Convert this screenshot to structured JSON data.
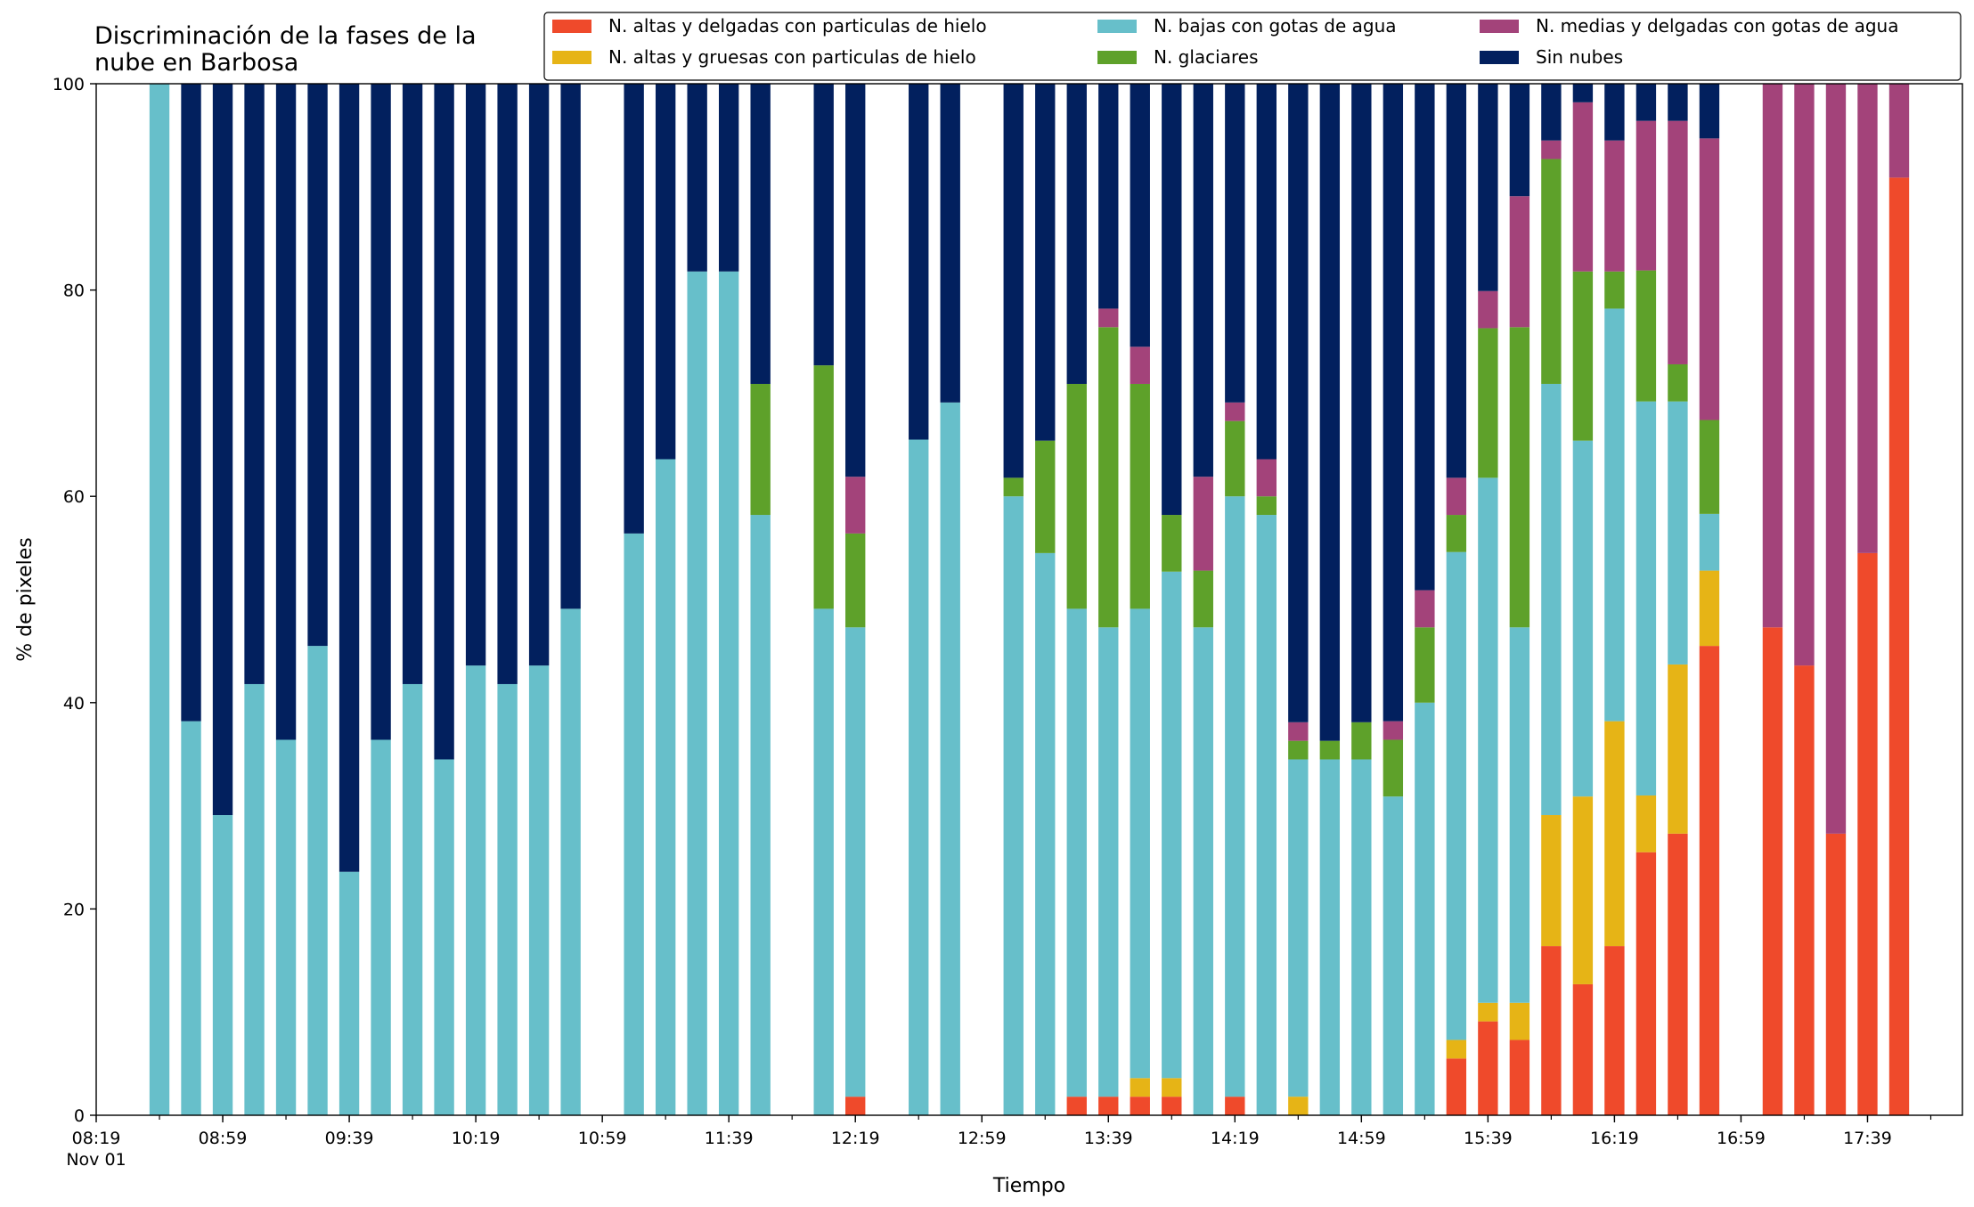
{
  "chart_data": {
    "type": "bar",
    "stacked": true,
    "title": "Discriminación de la fases de la\nnube en Barbosa",
    "xlabel": "Tiempo",
    "ylabel": "% de pixeles",
    "ylim": [
      0,
      100
    ],
    "yticks": [
      0,
      20,
      40,
      60,
      80,
      100
    ],
    "xlim": [
      "08:19",
      "18:09"
    ],
    "xticks": [
      {
        "t": "08:19",
        "label": "08:19",
        "sublabel": "Nov 01"
      },
      {
        "t": "08:59",
        "label": "08:59"
      },
      {
        "t": "09:39",
        "label": "09:39"
      },
      {
        "t": "10:19",
        "label": "10:19"
      },
      {
        "t": "10:59",
        "label": "10:59"
      },
      {
        "t": "11:39",
        "label": "11:39"
      },
      {
        "t": "12:19",
        "label": "12:19"
      },
      {
        "t": "12:59",
        "label": "12:59"
      },
      {
        "t": "13:39",
        "label": "13:39"
      },
      {
        "t": "14:19",
        "label": "14:19"
      },
      {
        "t": "14:59",
        "label": "14:59"
      },
      {
        "t": "15:39",
        "label": "15:39"
      },
      {
        "t": "16:19",
        "label": "16:19"
      },
      {
        "t": "16:59",
        "label": "16:59"
      },
      {
        "t": "17:39",
        "label": "17:39"
      }
    ],
    "legend_position": "top-right",
    "series": [
      {
        "key": "hi_thin",
        "name": "N. altas y delgadas con particulas de hielo",
        "color": "#ef4a2b"
      },
      {
        "key": "hi_thick",
        "name": "N. altas y gruesas con particulas de hielo",
        "color": "#e6b416"
      },
      {
        "key": "low_water",
        "name": "N. bajas con gotas de agua",
        "color": "#67bfca"
      },
      {
        "key": "glacier",
        "name": "N. glaciares",
        "color": "#5ea12a"
      },
      {
        "key": "mid_water",
        "name": "N. medias y delgadas con gotas de agua",
        "color": "#a3437a"
      },
      {
        "key": "clear",
        "name": "Sin nubes",
        "color": "#02205e"
      }
    ],
    "bars": [
      {
        "t": "08:39",
        "hi_thin": 0,
        "hi_thick": 0,
        "low_water": 100,
        "glacier": 0,
        "mid_water": 0,
        "clear": 0
      },
      {
        "t": "08:49",
        "hi_thin": 0,
        "hi_thick": 0,
        "low_water": 38.2,
        "glacier": 0,
        "mid_water": 0,
        "clear": 61.8
      },
      {
        "t": "08:59",
        "hi_thin": 0,
        "hi_thick": 0,
        "low_water": 29.1,
        "glacier": 0,
        "mid_water": 0,
        "clear": 70.9
      },
      {
        "t": "09:09",
        "hi_thin": 0,
        "hi_thick": 0,
        "low_water": 41.8,
        "glacier": 0,
        "mid_water": 0,
        "clear": 58.2
      },
      {
        "t": "09:19",
        "hi_thin": 0,
        "hi_thick": 0,
        "low_water": 36.4,
        "glacier": 0,
        "mid_water": 0,
        "clear": 63.6
      },
      {
        "t": "09:29",
        "hi_thin": 0,
        "hi_thick": 0,
        "low_water": 45.5,
        "glacier": 0,
        "mid_water": 0,
        "clear": 54.5
      },
      {
        "t": "09:39",
        "hi_thin": 0,
        "hi_thick": 0,
        "low_water": 23.6,
        "glacier": 0,
        "mid_water": 0,
        "clear": 76.4
      },
      {
        "t": "09:49",
        "hi_thin": 0,
        "hi_thick": 0,
        "low_water": 36.4,
        "glacier": 0,
        "mid_water": 0,
        "clear": 63.6
      },
      {
        "t": "09:59",
        "hi_thin": 0,
        "hi_thick": 0,
        "low_water": 41.8,
        "glacier": 0,
        "mid_water": 0,
        "clear": 58.2
      },
      {
        "t": "10:09",
        "hi_thin": 0,
        "hi_thick": 0,
        "low_water": 34.5,
        "glacier": 0,
        "mid_water": 0,
        "clear": 65.5
      },
      {
        "t": "10:19",
        "hi_thin": 0,
        "hi_thick": 0,
        "low_water": 43.6,
        "glacier": 0,
        "mid_water": 0,
        "clear": 56.4
      },
      {
        "t": "10:29",
        "hi_thin": 0,
        "hi_thick": 0,
        "low_water": 41.8,
        "glacier": 0,
        "mid_water": 0,
        "clear": 58.2
      },
      {
        "t": "10:39",
        "hi_thin": 0,
        "hi_thick": 0,
        "low_water": 43.6,
        "glacier": 0,
        "mid_water": 0,
        "clear": 56.4
      },
      {
        "t": "10:49",
        "hi_thin": 0,
        "hi_thick": 0,
        "low_water": 49.1,
        "glacier": 0,
        "mid_water": 0,
        "clear": 50.9
      },
      {
        "t": "11:09",
        "hi_thin": 0,
        "hi_thick": 0,
        "low_water": 56.4,
        "glacier": 0,
        "mid_water": 0,
        "clear": 43.6
      },
      {
        "t": "11:19",
        "hi_thin": 0,
        "hi_thick": 0,
        "low_water": 63.6,
        "glacier": 0,
        "mid_water": 0,
        "clear": 36.4
      },
      {
        "t": "11:29",
        "hi_thin": 0,
        "hi_thick": 0,
        "low_water": 81.8,
        "glacier": 0,
        "mid_water": 0,
        "clear": 18.2
      },
      {
        "t": "11:39",
        "hi_thin": 0,
        "hi_thick": 0,
        "low_water": 81.8,
        "glacier": 0,
        "mid_water": 0,
        "clear": 18.2
      },
      {
        "t": "11:49",
        "hi_thin": 0,
        "hi_thick": 0,
        "low_water": 58.2,
        "glacier": 12.7,
        "mid_water": 0,
        "clear": 29.1
      },
      {
        "t": "12:09",
        "hi_thin": 0,
        "hi_thick": 0,
        "low_water": 49.1,
        "glacier": 23.6,
        "mid_water": 0,
        "clear": 27.3
      },
      {
        "t": "12:19",
        "hi_thin": 1.8,
        "hi_thick": 0,
        "low_water": 45.5,
        "glacier": 9.1,
        "mid_water": 5.5,
        "clear": 38.1
      },
      {
        "t": "12:39",
        "hi_thin": 0,
        "hi_thick": 0,
        "low_water": 65.5,
        "glacier": 0,
        "mid_water": 0,
        "clear": 34.5
      },
      {
        "t": "12:49",
        "hi_thin": 0,
        "hi_thick": 0,
        "low_water": 69.1,
        "glacier": 0,
        "mid_water": 0,
        "clear": 30.9
      },
      {
        "t": "13:09",
        "hi_thin": 0,
        "hi_thick": 0,
        "low_water": 60,
        "glacier": 1.8,
        "mid_water": 0,
        "clear": 38.2
      },
      {
        "t": "13:19",
        "hi_thin": 0,
        "hi_thick": 0,
        "low_water": 54.5,
        "glacier": 10.9,
        "mid_water": 0,
        "clear": 34.6
      },
      {
        "t": "13:29",
        "hi_thin": 1.8,
        "hi_thick": 0,
        "low_water": 47.3,
        "glacier": 21.8,
        "mid_water": 0,
        "clear": 29.1
      },
      {
        "t": "13:39",
        "hi_thin": 1.8,
        "hi_thick": 0,
        "low_water": 45.5,
        "glacier": 29.1,
        "mid_water": 1.8,
        "clear": 21.8
      },
      {
        "t": "13:49",
        "hi_thin": 1.8,
        "hi_thick": 1.8,
        "low_water": 45.5,
        "glacier": 21.8,
        "mid_water": 3.6,
        "clear": 25.5
      },
      {
        "t": "13:59",
        "hi_thin": 1.8,
        "hi_thick": 1.8,
        "low_water": 49.1,
        "glacier": 5.5,
        "mid_water": 0,
        "clear": 41.8
      },
      {
        "t": "14:09",
        "hi_thin": 0,
        "hi_thick": 0,
        "low_water": 47.3,
        "glacier": 5.5,
        "mid_water": 9.1,
        "clear": 38.1
      },
      {
        "t": "14:19",
        "hi_thin": 1.8,
        "hi_thick": 0,
        "low_water": 58.2,
        "glacier": 7.3,
        "mid_water": 1.8,
        "clear": 30.9
      },
      {
        "t": "14:29",
        "hi_thin": 0,
        "hi_thick": 0,
        "low_water": 58.2,
        "glacier": 1.8,
        "mid_water": 3.6,
        "clear": 36.4
      },
      {
        "t": "14:39",
        "hi_thin": 0,
        "hi_thick": 1.8,
        "low_water": 32.7,
        "glacier": 1.8,
        "mid_water": 1.8,
        "clear": 61.9
      },
      {
        "t": "14:49",
        "hi_thin": 0,
        "hi_thick": 0,
        "low_water": 34.5,
        "glacier": 1.8,
        "mid_water": 0,
        "clear": 63.7
      },
      {
        "t": "14:59",
        "hi_thin": 0,
        "hi_thick": 0,
        "low_water": 34.5,
        "glacier": 3.6,
        "mid_water": 0,
        "clear": 61.9
      },
      {
        "t": "15:09",
        "hi_thin": 0,
        "hi_thick": 0,
        "low_water": 30.9,
        "glacier": 5.5,
        "mid_water": 1.8,
        "clear": 61.8
      },
      {
        "t": "15:19",
        "hi_thin": 0,
        "hi_thick": 0,
        "low_water": 40,
        "glacier": 7.3,
        "mid_water": 3.6,
        "clear": 49.1
      },
      {
        "t": "15:29",
        "hi_thin": 5.5,
        "hi_thick": 1.8,
        "low_water": 47.3,
        "glacier": 3.6,
        "mid_water": 3.6,
        "clear": 38.2
      },
      {
        "t": "15:39",
        "hi_thin": 9.1,
        "hi_thick": 1.8,
        "low_water": 50.9,
        "glacier": 14.5,
        "mid_water": 3.6,
        "clear": 20.1
      },
      {
        "t": "15:49",
        "hi_thin": 7.3,
        "hi_thick": 3.6,
        "low_water": 36.4,
        "glacier": 29.1,
        "mid_water": 12.7,
        "clear": 10.9
      },
      {
        "t": "15:59",
        "hi_thin": 16.4,
        "hi_thick": 12.7,
        "low_water": 41.8,
        "glacier": 21.8,
        "mid_water": 1.8,
        "clear": 5.5
      },
      {
        "t": "16:09",
        "hi_thin": 12.7,
        "hi_thick": 18.2,
        "low_water": 34.5,
        "glacier": 16.4,
        "mid_water": 16.4,
        "clear": 1.8
      },
      {
        "t": "16:19",
        "hi_thin": 16.4,
        "hi_thick": 21.8,
        "low_water": 40,
        "glacier": 3.6,
        "mid_water": 12.7,
        "clear": 5.5
      },
      {
        "t": "16:29",
        "hi_thin": 25.5,
        "hi_thick": 5.5,
        "low_water": 38.2,
        "glacier": 12.7,
        "mid_water": 14.5,
        "clear": 3.6
      },
      {
        "t": "16:39",
        "hi_thin": 27.3,
        "hi_thick": 16.4,
        "low_water": 25.5,
        "glacier": 3.6,
        "mid_water": 23.6,
        "clear": 3.6
      },
      {
        "t": "16:49",
        "hi_thin": 45.5,
        "hi_thick": 7.3,
        "low_water": 5.5,
        "glacier": 9.1,
        "mid_water": 27.3,
        "clear": 5.3
      },
      {
        "t": "17:09",
        "hi_thin": 47.3,
        "hi_thick": 0,
        "low_water": 0,
        "glacier": 0,
        "mid_water": 52.7,
        "clear": 0
      },
      {
        "t": "17:19",
        "hi_thin": 43.6,
        "hi_thick": 0,
        "low_water": 0,
        "glacier": 0,
        "mid_water": 56.4,
        "clear": 0
      },
      {
        "t": "17:29",
        "hi_thin": 27.3,
        "hi_thick": 0,
        "low_water": 0,
        "glacier": 0,
        "mid_water": 72.7,
        "clear": 0
      },
      {
        "t": "17:39",
        "hi_thin": 54.5,
        "hi_thick": 0,
        "low_water": 0,
        "glacier": 0,
        "mid_water": 45.5,
        "clear": 0
      },
      {
        "t": "17:49",
        "hi_thin": 90.9,
        "hi_thick": 0,
        "low_water": 0,
        "glacier": 0,
        "mid_water": 9.1,
        "clear": 0
      }
    ]
  }
}
